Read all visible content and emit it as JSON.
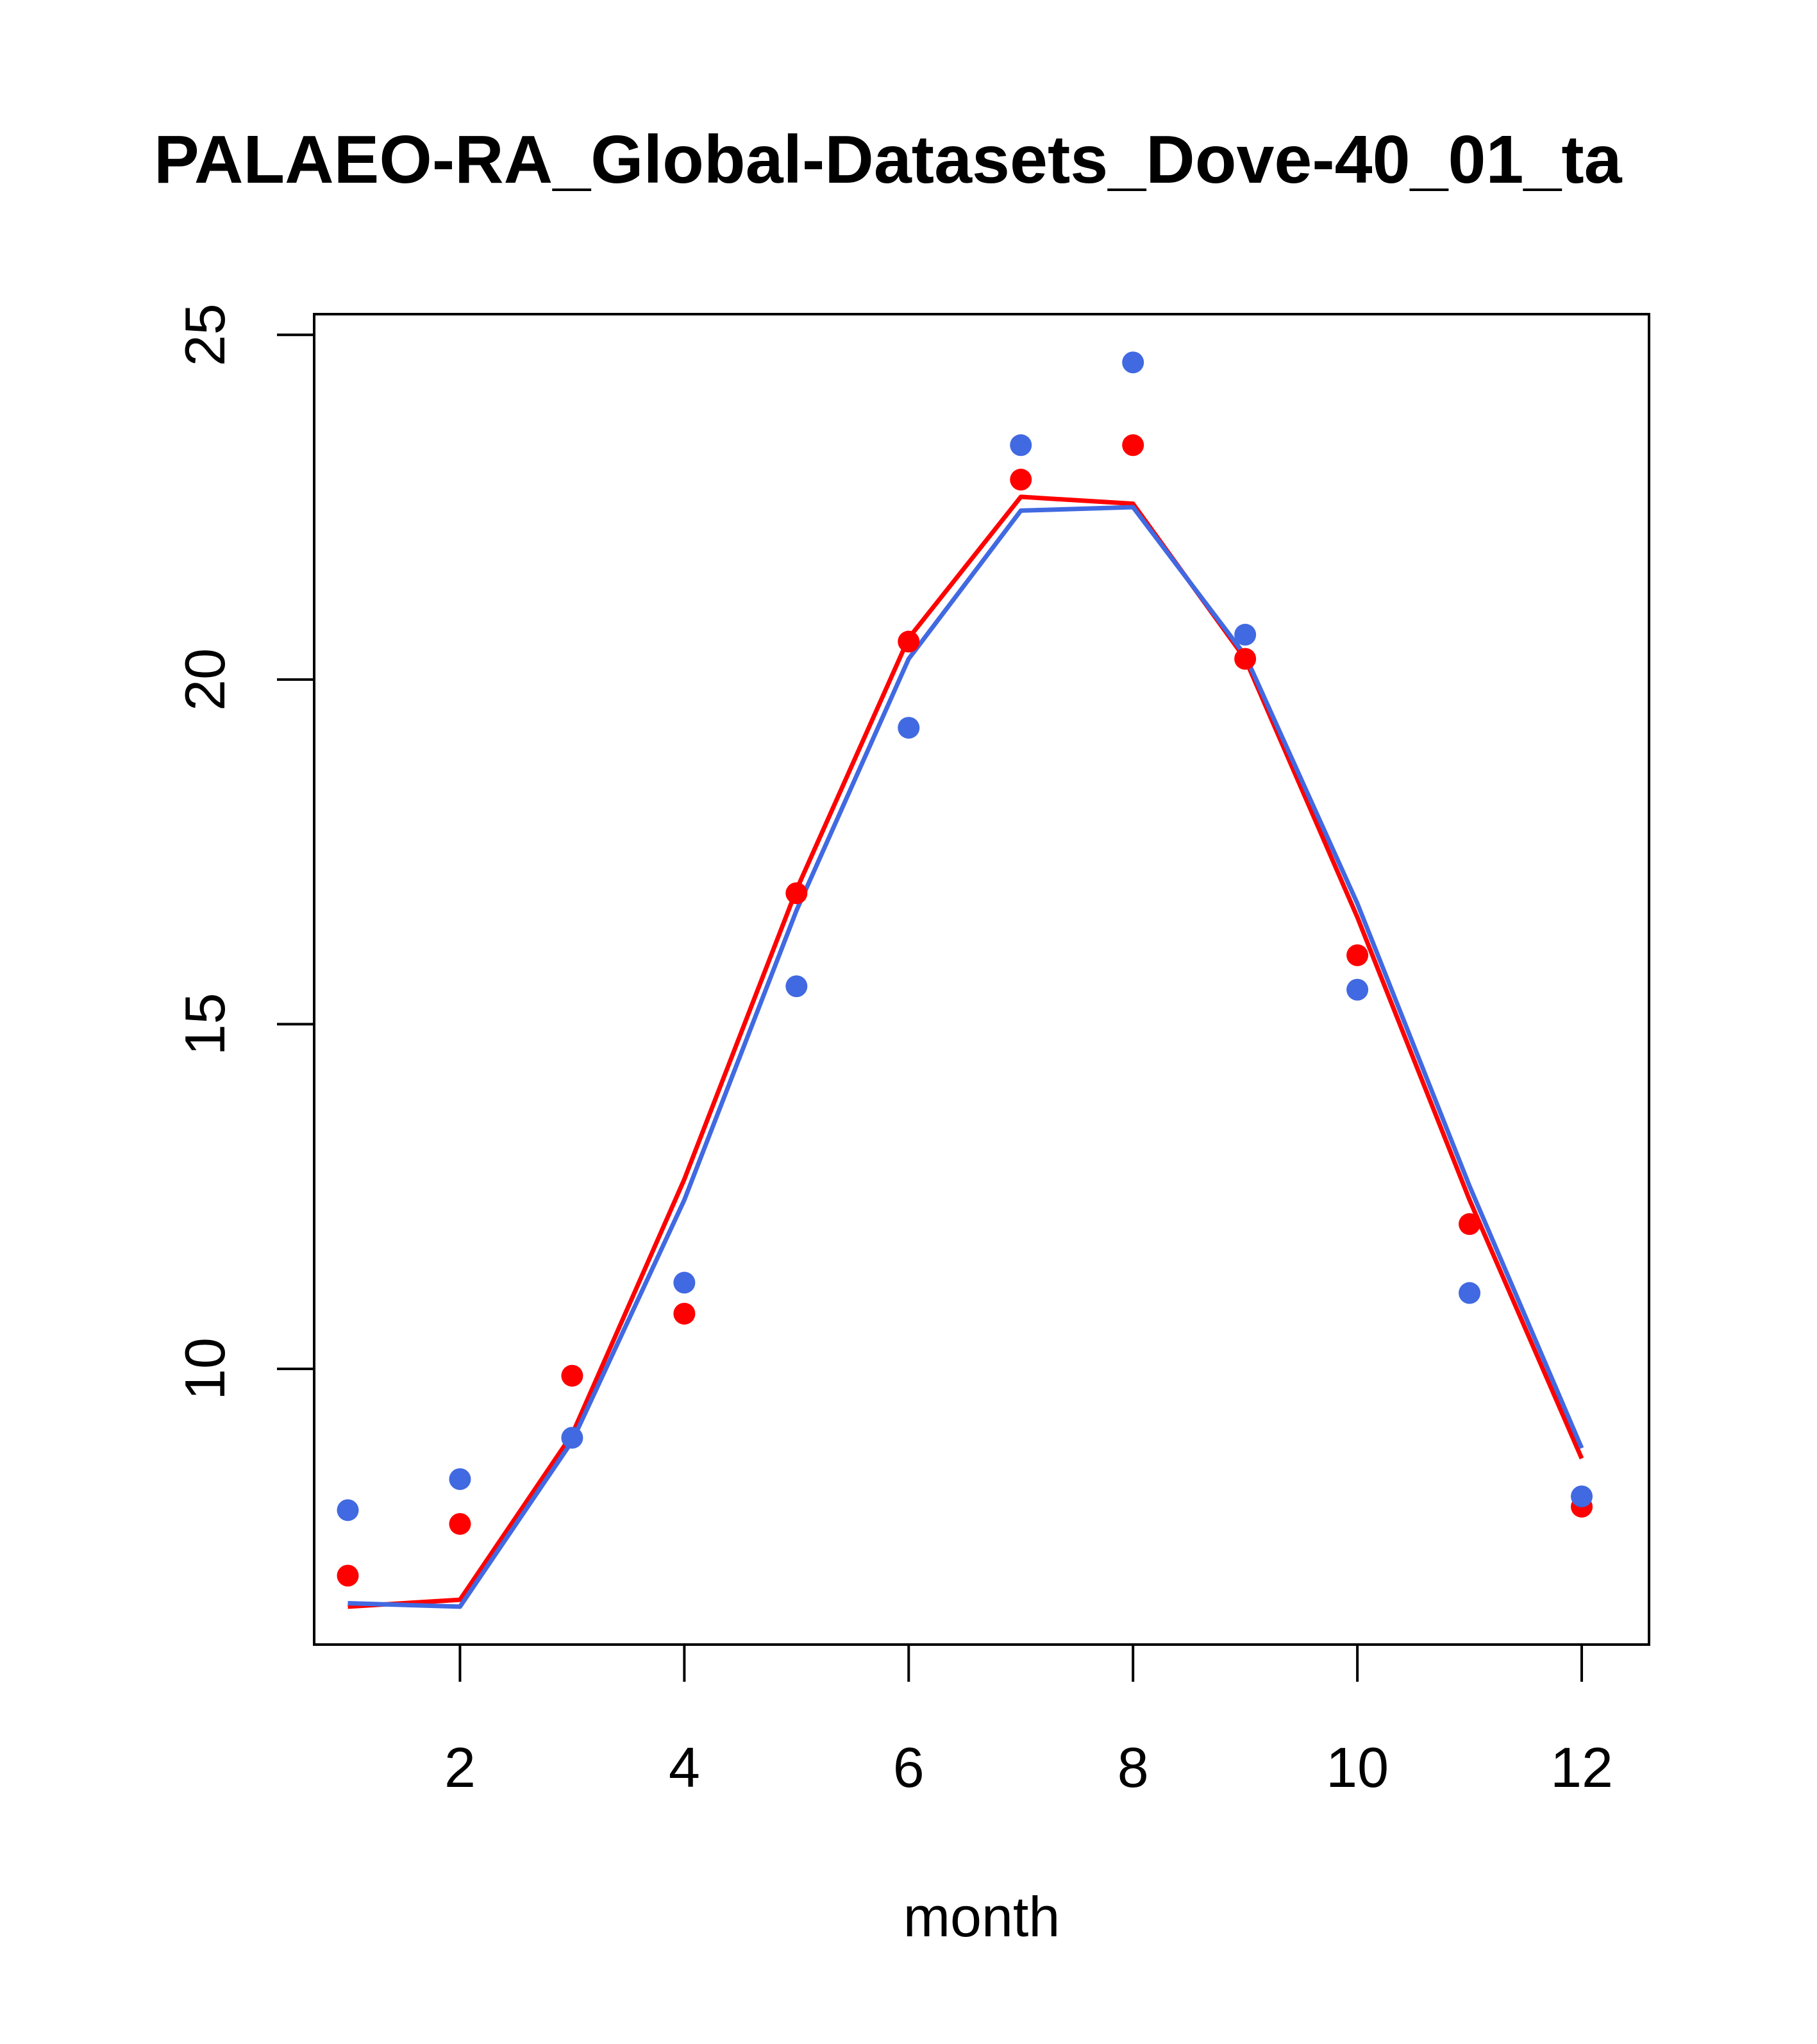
{
  "chart_data": {
    "type": "line",
    "title": "PALAEO-RA_Global-Datasets_Dove-40_01_ta",
    "xlabel": "month",
    "ylabel": "",
    "xlim": [
      0.7,
      12.6
    ],
    "ylim": [
      6.0,
      25.3
    ],
    "x_ticks": [
      2,
      4,
      6,
      8,
      10,
      12
    ],
    "y_ticks": [
      10,
      15,
      20,
      25
    ],
    "x": [
      1,
      2,
      3,
      4,
      5,
      6,
      7,
      8,
      9,
      10,
      11,
      12
    ],
    "grid": false,
    "legend": "none",
    "series": [
      {
        "kind": "line",
        "color": "#ff0000",
        "values": [
          6.55,
          6.65,
          9.05,
          12.75,
          16.95,
          20.6,
          22.65,
          22.55,
          20.3,
          16.55,
          12.45,
          8.7
        ]
      },
      {
        "kind": "line",
        "color": "#4169e1",
        "values": [
          6.6,
          6.55,
          8.95,
          12.45,
          16.65,
          20.3,
          22.45,
          22.5,
          20.35,
          16.75,
          12.65,
          8.85
        ]
      },
      {
        "kind": "points",
        "color": "#ff0000",
        "values": [
          7.0,
          7.75,
          9.9,
          10.8,
          16.9,
          20.55,
          22.9,
          23.4,
          20.3,
          16.0,
          12.1,
          8.0
        ]
      },
      {
        "kind": "points",
        "color": "#4169e1",
        "values": [
          7.95,
          8.4,
          9.0,
          11.25,
          15.55,
          19.3,
          23.4,
          24.6,
          20.65,
          15.5,
          11.1,
          8.15
        ]
      }
    ]
  }
}
